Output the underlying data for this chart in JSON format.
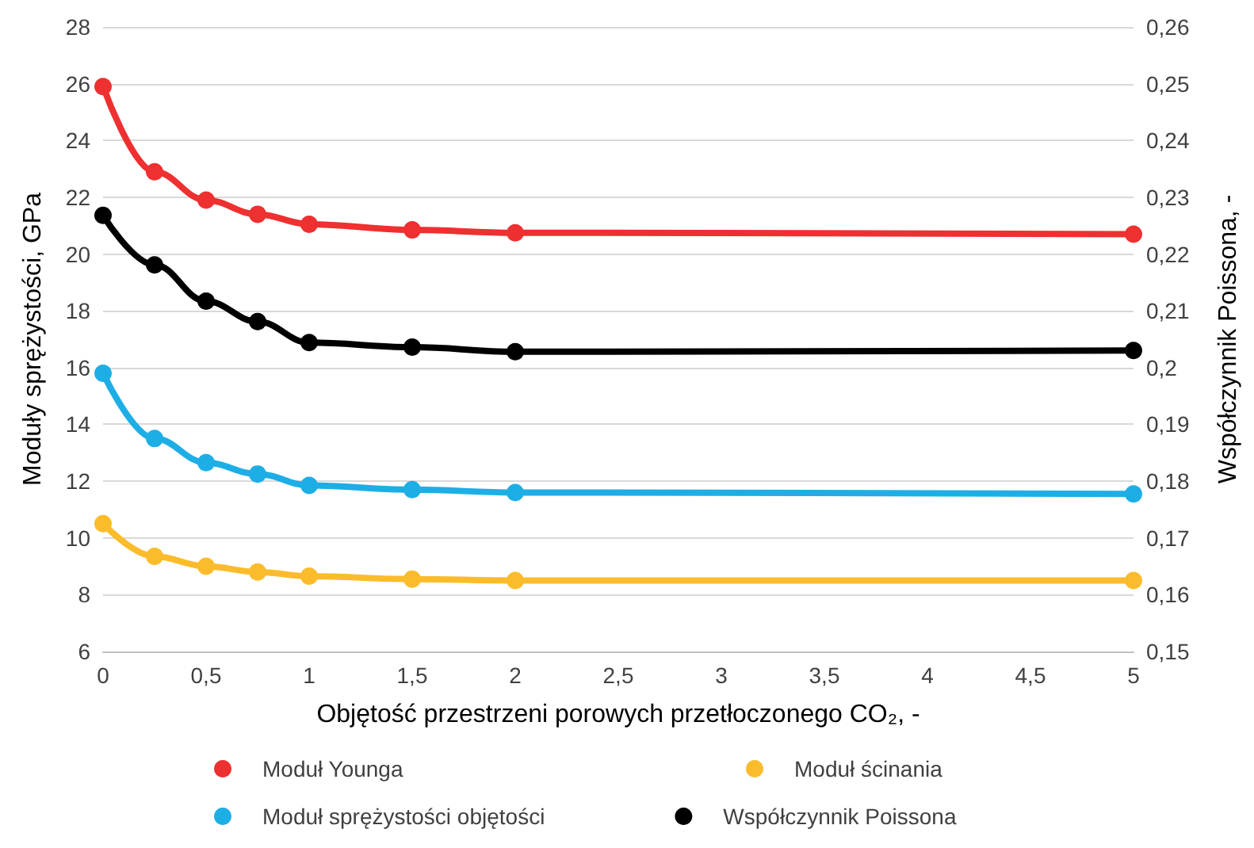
{
  "chart_data": {
    "type": "line",
    "xlabel": "Objętość przestrzeni porowych przetłoczonego CO₂, -",
    "ylabel": "Moduły sprężystości, GPa",
    "y2label": "Współczynnik Poissona, -",
    "x": [
      0,
      0.25,
      0.5,
      0.75,
      1,
      1.5,
      2,
      5
    ],
    "series": [
      {
        "name": "Moduł Younga",
        "color": "#ee3030",
        "values": [
          25.9,
          22.9,
          21.9,
          21.4,
          21.05,
          20.85,
          20.75,
          20.7
        ]
      },
      {
        "name": "Moduł ścinania",
        "color": "#fbbc2c",
        "values": [
          10.5,
          9.35,
          9.0,
          8.8,
          8.65,
          8.55,
          8.5,
          8.5
        ]
      },
      {
        "name": "Moduł sprężystości objętości",
        "color": "#1eaee6",
        "values": [
          15.8,
          13.5,
          12.65,
          12.25,
          11.85,
          11.7,
          11.6,
          11.55
        ]
      },
      {
        "name": "Współczynnik Poissona",
        "color": "#000000",
        "axis": "y2",
        "values": [
          0.2268,
          0.2181,
          0.2117,
          0.2081,
          0.2044,
          0.2036,
          0.2028,
          0.203
        ]
      }
    ],
    "xlim": [
      0,
      5
    ],
    "xticks": [
      0,
      {
        "value": 0.5,
        "label": "0,5"
      },
      1,
      {
        "value": 1.5,
        "label": "1,5"
      },
      2,
      {
        "value": 2.5,
        "label": "2,5"
      },
      3,
      {
        "value": 3.5,
        "label": "3,5"
      },
      4,
      {
        "value": 4.5,
        "label": "4,5"
      },
      5
    ],
    "ylim": [
      6,
      28
    ],
    "yticks": [
      6,
      8,
      10,
      12,
      14,
      16,
      18,
      20,
      22,
      24,
      26,
      28
    ],
    "y2lim": [
      0.15,
      0.26
    ],
    "y2ticks": [
      {
        "value": 0.15,
        "label": "0,15"
      },
      {
        "value": 0.16,
        "label": "0,16"
      },
      {
        "value": 0.17,
        "label": "0,17"
      },
      {
        "value": 0.18,
        "label": "0,18"
      },
      {
        "value": 0.19,
        "label": "0,19"
      },
      {
        "value": 0.2,
        "label": "0,2"
      },
      {
        "value": 0.21,
        "label": "0,21"
      },
      {
        "value": 0.22,
        "label": "0,22"
      },
      {
        "value": 0.23,
        "label": "0,23"
      },
      {
        "value": 0.24,
        "label": "0,24"
      },
      {
        "value": 0.25,
        "label": "0,25"
      },
      {
        "value": 0.26,
        "label": "0,26"
      }
    ],
    "grid": "y",
    "legend": "bottom",
    "marker": "circle",
    "line_style": "solid"
  }
}
